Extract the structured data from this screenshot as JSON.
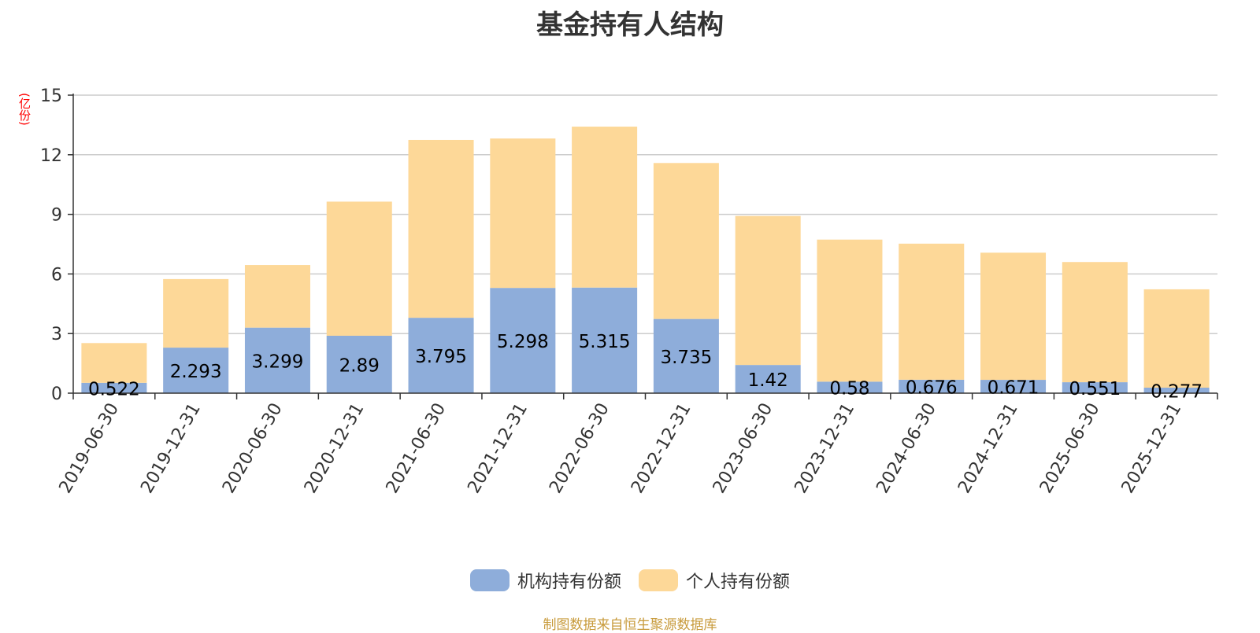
{
  "chart_data": {
    "type": "bar",
    "stacked": true,
    "title": "基金持有人结构",
    "ylabel": "(亿份)",
    "ylim": [
      0,
      15
    ],
    "yticks": [
      0,
      3,
      6,
      9,
      12,
      15
    ],
    "categories": [
      "2019-06-30",
      "2019-12-31",
      "2020-06-30",
      "2020-12-31",
      "2021-06-30",
      "2021-12-31",
      "2022-06-30",
      "2022-12-31",
      "2023-06-30",
      "2023-12-31",
      "2024-06-30",
      "2024-12-31",
      "2025-06-30",
      "2025-12-31"
    ],
    "series": [
      {
        "name": "机构持有份额",
        "color": "#8eadda",
        "values": [
          0.522,
          2.293,
          3.299,
          2.89,
          3.795,
          5.298,
          5.315,
          3.735,
          1.42,
          0.58,
          0.676,
          0.671,
          0.551,
          0.277
        ],
        "labels": [
          "0.522",
          "2.293",
          "3.299",
          "2.89",
          "3.795",
          "5.298",
          "5.315",
          "3.735",
          "1.42",
          "0.58",
          "0.676",
          "0.671",
          "0.551",
          "0.277"
        ]
      },
      {
        "name": "个人持有份额",
        "color": "#fdd898",
        "values": [
          2.0,
          3.45,
          3.15,
          6.75,
          8.95,
          7.52,
          8.1,
          7.85,
          7.5,
          7.15,
          6.85,
          6.4,
          6.05,
          4.95
        ]
      }
    ],
    "legend_position": "bottom"
  },
  "source_note": "制图数据来自恒生聚源数据库"
}
